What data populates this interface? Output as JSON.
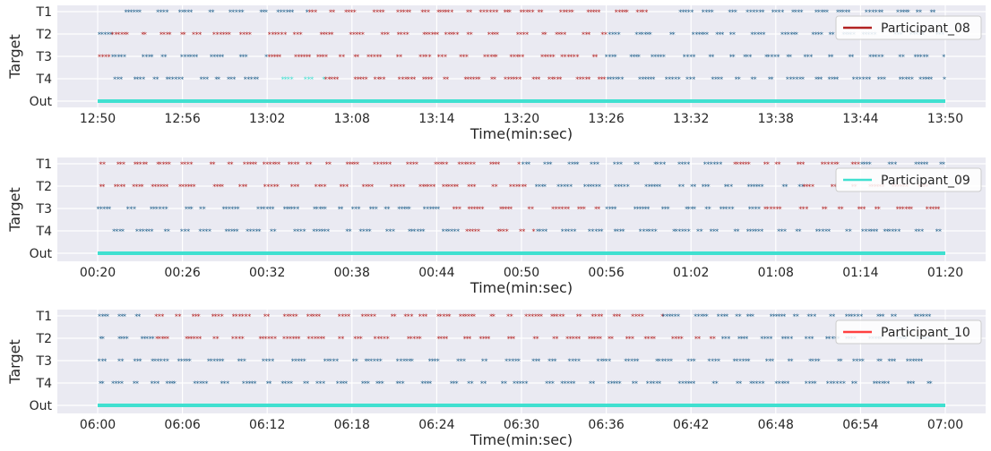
{
  "colors": {
    "background": "#eaeaf2",
    "grid": "#ffffff",
    "target_dark_blue": "#1f5f8b",
    "target_red": "#b22222",
    "out_cyan": "#40e0d0",
    "text": "#262626"
  },
  "chart_data": [
    {
      "type": "scatter",
      "title": "",
      "xlabel": "Time(min:sec)",
      "ylabel": "Target",
      "y_categories": [
        "T1",
        "T2",
        "T3",
        "T4",
        "Out"
      ],
      "x_ticks": [
        "12:50",
        "12:56",
        "13:02",
        "13:08",
        "13:14",
        "13:20",
        "13:26",
        "13:32",
        "13:38",
        "13:44",
        "13:50"
      ],
      "xlim": [
        "12:50",
        "13:50"
      ],
      "grid": true,
      "legend": {
        "position": "top-right",
        "label": "Participant_08",
        "color": "#b22222"
      },
      "series": [
        {
          "target": "T1",
          "segments": [
            {
              "start": "12:52",
              "end": "13:05",
              "color": "#1f5f8b"
            },
            {
              "start": "13:05",
              "end": "13:21",
              "color": "#b22222"
            },
            {
              "start": "13:21",
              "end": "13:29",
              "color": "#b22222"
            },
            {
              "start": "13:31",
              "end": "13:50",
              "color": "#1f5f8b"
            }
          ]
        },
        {
          "target": "T2",
          "segments": [
            {
              "start": "12:50",
              "end": "12:51",
              "color": "#1f5f8b"
            },
            {
              "start": "12:51",
              "end": "13:00",
              "color": "#b22222"
            },
            {
              "start": "13:00",
              "end": "13:26",
              "color": "#b22222"
            },
            {
              "start": "13:26",
              "end": "13:50",
              "color": "#1f5f8b"
            }
          ]
        },
        {
          "target": "T3",
          "segments": [
            {
              "start": "12:50",
              "end": "12:51",
              "color": "#b22222"
            },
            {
              "start": "12:51",
              "end": "13:02",
              "color": "#1f5f8b"
            },
            {
              "start": "13:02",
              "end": "13:26",
              "color": "#b22222"
            },
            {
              "start": "13:26",
              "end": "13:50",
              "color": "#1f5f8b"
            }
          ]
        },
        {
          "target": "T4",
          "segments": [
            {
              "start": "12:51",
              "end": "13:02",
              "color": "#1f5f8b"
            },
            {
              "start": "13:03",
              "end": "13:06",
              "color": "#40e0d0"
            },
            {
              "start": "13:06",
              "end": "13:26",
              "color": "#b22222"
            },
            {
              "start": "13:26",
              "end": "13:50",
              "color": "#1f5f8b"
            }
          ]
        },
        {
          "target": "Out",
          "segments": [
            {
              "start": "12:50",
              "end": "13:50",
              "color": "#40e0d0"
            }
          ]
        }
      ]
    },
    {
      "type": "scatter",
      "title": "",
      "xlabel": "Time(min:sec)",
      "ylabel": "Target",
      "y_categories": [
        "T1",
        "T2",
        "T3",
        "T4",
        "Out"
      ],
      "x_ticks": [
        "00:20",
        "00:26",
        "00:32",
        "00:38",
        "00:44",
        "00:50",
        "00:56",
        "01:02",
        "01:08",
        "01:14",
        "01:20"
      ],
      "xlim": [
        "00:20",
        "01:20"
      ],
      "grid": true,
      "legend": {
        "position": "top-right",
        "label": "Participant_09",
        "color": "#40e0d0"
      },
      "series": [
        {
          "target": "T1",
          "segments": [
            {
              "start": "00:20",
              "end": "00:50",
              "color": "#b22222"
            },
            {
              "start": "00:50",
              "end": "01:05",
              "color": "#1f5f8b"
            },
            {
              "start": "01:05",
              "end": "01:14",
              "color": "#b22222"
            },
            {
              "start": "01:14",
              "end": "01:20",
              "color": "#1f5f8b"
            }
          ]
        },
        {
          "target": "T2",
          "segments": [
            {
              "start": "00:20",
              "end": "00:51",
              "color": "#b22222"
            },
            {
              "start": "00:51",
              "end": "01:10",
              "color": "#1f5f8b"
            },
            {
              "start": "01:10",
              "end": "01:20",
              "color": "#b22222"
            }
          ]
        },
        {
          "target": "T3",
          "segments": [
            {
              "start": "00:20",
              "end": "00:45",
              "color": "#1f5f8b"
            },
            {
              "start": "00:45",
              "end": "00:56",
              "color": "#b22222"
            },
            {
              "start": "00:56",
              "end": "01:07",
              "color": "#1f5f8b"
            },
            {
              "start": "01:07",
              "end": "01:20",
              "color": "#b22222"
            }
          ]
        },
        {
          "target": "T4",
          "segments": [
            {
              "start": "00:21",
              "end": "00:46",
              "color": "#1f5f8b"
            },
            {
              "start": "00:46",
              "end": "00:51",
              "color": "#b22222"
            },
            {
              "start": "00:51",
              "end": "01:20",
              "color": "#1f5f8b"
            }
          ]
        },
        {
          "target": "Out",
          "segments": [
            {
              "start": "00:20",
              "end": "01:20",
              "color": "#40e0d0"
            }
          ]
        }
      ]
    },
    {
      "type": "scatter",
      "title": "",
      "xlabel": "Time(min:sec)",
      "ylabel": "Target",
      "y_categories": [
        "T1",
        "T2",
        "T3",
        "T4",
        "Out"
      ],
      "x_ticks": [
        "06:00",
        "06:06",
        "06:12",
        "06:18",
        "06:24",
        "06:30",
        "06:36",
        "06:42",
        "06:48",
        "06:54",
        "07:00"
      ],
      "xlim": [
        "06:00",
        "07:00"
      ],
      "grid": true,
      "legend": {
        "position": "top-right",
        "label": "Participant_10",
        "color": "#ff4040"
      },
      "series": [
        {
          "target": "T1",
          "segments": [
            {
              "start": "06:00",
              "end": "06:03",
              "color": "#1f5f8b"
            },
            {
              "start": "06:04",
              "end": "06:40",
              "color": "#b22222"
            },
            {
              "start": "06:40",
              "end": "06:59",
              "color": "#1f5f8b"
            }
          ]
        },
        {
          "target": "T2",
          "segments": [
            {
              "start": "06:00",
              "end": "06:04",
              "color": "#1f5f8b"
            },
            {
              "start": "06:04",
              "end": "06:44",
              "color": "#b22222"
            },
            {
              "start": "06:44",
              "end": "06:59",
              "color": "#1f5f8b"
            }
          ]
        },
        {
          "target": "T3",
          "segments": [
            {
              "start": "06:00",
              "end": "06:59",
              "color": "#1f5f8b"
            }
          ]
        },
        {
          "target": "T4",
          "segments": [
            {
              "start": "06:00",
              "end": "06:59",
              "color": "#1f5f8b"
            }
          ]
        },
        {
          "target": "Out",
          "segments": [
            {
              "start": "06:00",
              "end": "07:00",
              "color": "#40e0d0"
            }
          ]
        }
      ]
    }
  ]
}
